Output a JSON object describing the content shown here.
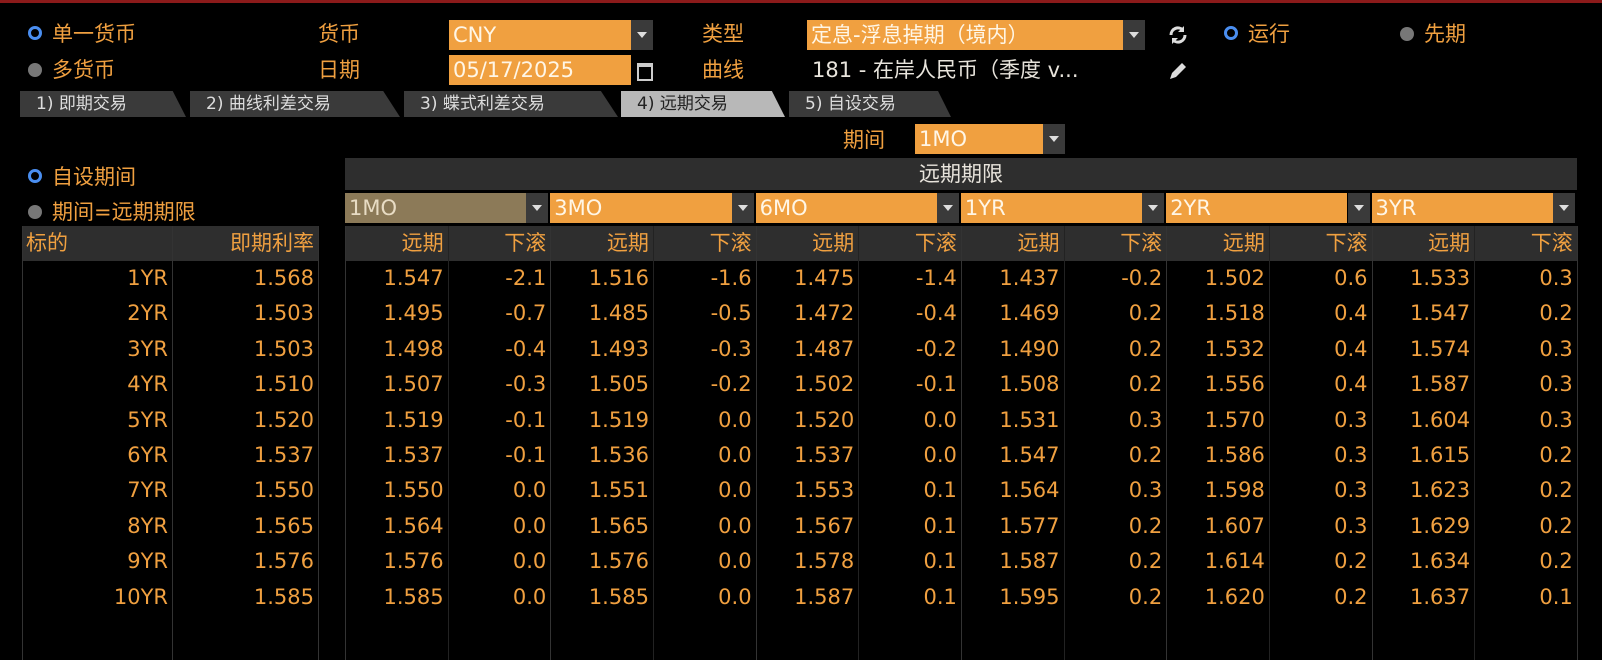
{
  "controls": {
    "mode_options": [
      "单一货币",
      "多货币"
    ],
    "currency_label": "货币",
    "currency": "CNY",
    "date_label": "日期",
    "date": "05/17/2025",
    "type_label": "类型",
    "type": "定息-浮息掉期（境内）",
    "curve_label": "曲线",
    "curve": "181 - 在岸人民币（季度 v...",
    "run": "运行",
    "forward": "先期"
  },
  "tabs": [
    "1) 即期交易",
    "2) 曲线利差交易",
    "3) 蝶式利差交易",
    "4) 远期交易",
    "5) 自设交易"
  ],
  "period_label": "期间",
  "period": "1MO",
  "period_options": [
    "自设期间",
    "期间=远期期限"
  ],
  "table": {
    "group_header": "远期期限",
    "horizons": [
      "1MO",
      "3MO",
      "6MO",
      "1YR",
      "2YR",
      "3YR"
    ],
    "left_headers": [
      "标的",
      "即期利率"
    ],
    "sub_headers": [
      "远期",
      "下滚"
    ],
    "rows": [
      {
        "tenor": "1YR",
        "spot": "1.568",
        "cells": [
          "1.547",
          "-2.1",
          "1.516",
          "-1.6",
          "1.475",
          "-1.4",
          "1.437",
          "-0.2",
          "1.502",
          "0.6",
          "1.533",
          "0.3"
        ]
      },
      {
        "tenor": "2YR",
        "spot": "1.503",
        "cells": [
          "1.495",
          "-0.7",
          "1.485",
          "-0.5",
          "1.472",
          "-0.4",
          "1.469",
          "0.2",
          "1.518",
          "0.4",
          "1.547",
          "0.2"
        ]
      },
      {
        "tenor": "3YR",
        "spot": "1.503",
        "cells": [
          "1.498",
          "-0.4",
          "1.493",
          "-0.3",
          "1.487",
          "-0.2",
          "1.490",
          "0.2",
          "1.532",
          "0.4",
          "1.574",
          "0.3"
        ]
      },
      {
        "tenor": "4YR",
        "spot": "1.510",
        "cells": [
          "1.507",
          "-0.3",
          "1.505",
          "-0.2",
          "1.502",
          "-0.1",
          "1.508",
          "0.2",
          "1.556",
          "0.4",
          "1.587",
          "0.3"
        ]
      },
      {
        "tenor": "5YR",
        "spot": "1.520",
        "cells": [
          "1.519",
          "-0.1",
          "1.519",
          "0.0",
          "1.520",
          "0.0",
          "1.531",
          "0.3",
          "1.570",
          "0.3",
          "1.604",
          "0.3"
        ]
      },
      {
        "tenor": "6YR",
        "spot": "1.537",
        "cells": [
          "1.537",
          "-0.1",
          "1.536",
          "0.0",
          "1.537",
          "0.0",
          "1.547",
          "0.2",
          "1.586",
          "0.3",
          "1.615",
          "0.2"
        ]
      },
      {
        "tenor": "7YR",
        "spot": "1.550",
        "cells": [
          "1.550",
          "0.0",
          "1.551",
          "0.0",
          "1.553",
          "0.1",
          "1.564",
          "0.3",
          "1.598",
          "0.3",
          "1.623",
          "0.2"
        ]
      },
      {
        "tenor": "8YR",
        "spot": "1.565",
        "cells": [
          "1.564",
          "0.0",
          "1.565",
          "0.0",
          "1.567",
          "0.1",
          "1.577",
          "0.2",
          "1.607",
          "0.3",
          "1.629",
          "0.2"
        ]
      },
      {
        "tenor": "9YR",
        "spot": "1.576",
        "cells": [
          "1.576",
          "0.0",
          "1.576",
          "0.0",
          "1.578",
          "0.1",
          "1.587",
          "0.2",
          "1.614",
          "0.2",
          "1.634",
          "0.2"
        ]
      },
      {
        "tenor": "10YR",
        "spot": "1.585",
        "cells": [
          "1.585",
          "0.0",
          "1.585",
          "0.0",
          "1.587",
          "0.1",
          "1.595",
          "0.2",
          "1.620",
          "0.2",
          "1.637",
          "0.1"
        ]
      }
    ]
  }
}
